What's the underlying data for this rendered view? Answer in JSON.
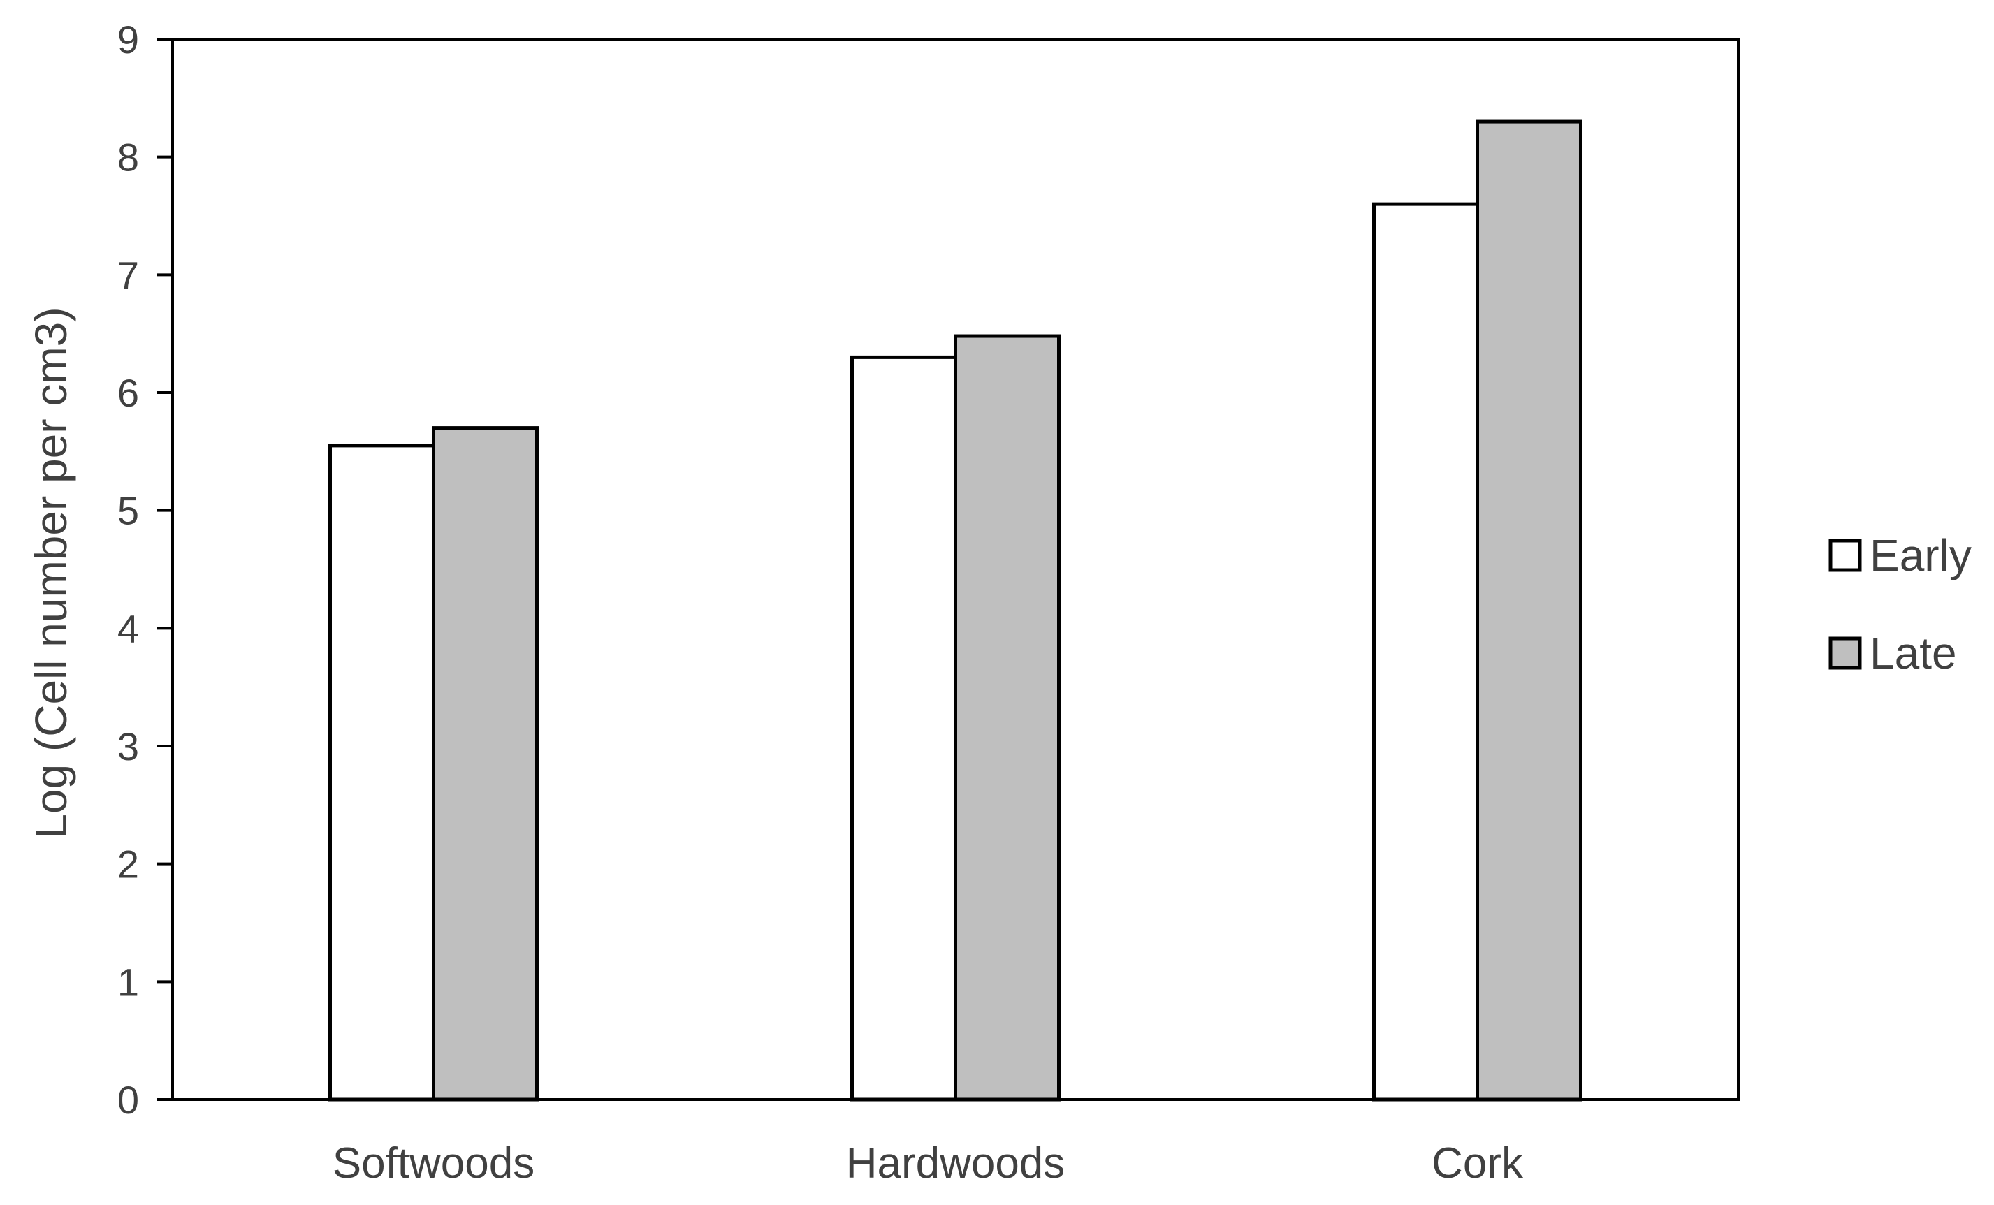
{
  "chart_data": {
    "type": "bar",
    "title": "",
    "xlabel": "",
    "ylabel": "Log (Cell number per cm3)",
    "categories": [
      "Softwoods",
      "Hardwoods",
      "Cork"
    ],
    "series": [
      {
        "name": "Early",
        "values": [
          5.55,
          6.3,
          7.6
        ],
        "color": "#ffffff"
      },
      {
        "name": "Late",
        "values": [
          5.7,
          6.48,
          8.3
        ],
        "color": "#bfbfbf"
      }
    ],
    "ylim": [
      0,
      9
    ],
    "yticks": [
      "0",
      "1",
      "2",
      "3",
      "4",
      "5",
      "6",
      "7",
      "8",
      "9"
    ],
    "grid": false,
    "legend_position": "right",
    "border_color": "#000000"
  }
}
